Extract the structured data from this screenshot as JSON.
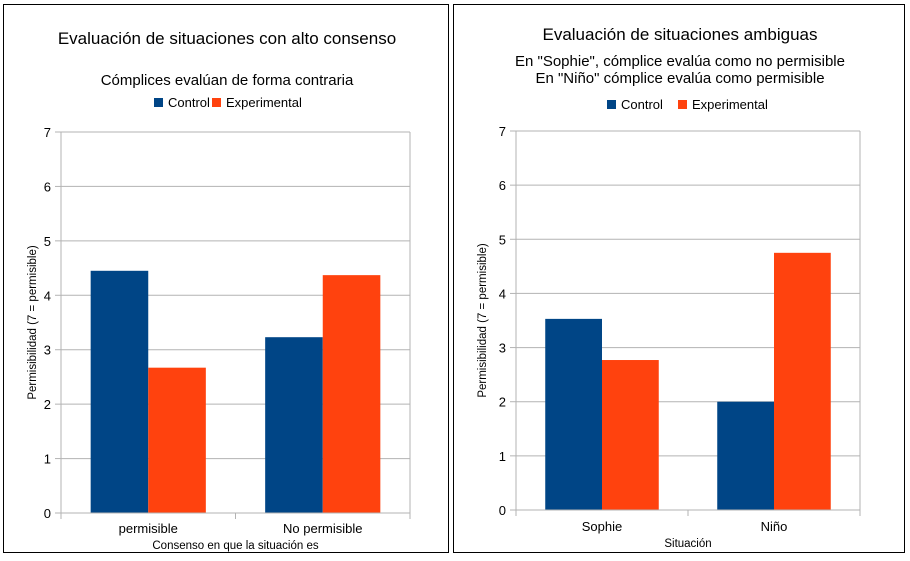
{
  "chart_data": [
    {
      "type": "bar",
      "title": "Evaluación de situaciones con alto consenso",
      "subtitle": [
        "Cómplices evalúan de forma contraria"
      ],
      "categories": [
        "permisible",
        "No permisible"
      ],
      "series": [
        {
          "name": "Control",
          "values": [
            4.45,
            3.23
          ],
          "color": "#004586"
        },
        {
          "name": "Experimental",
          "values": [
            2.67,
            4.37
          ],
          "color": "#ff420e"
        }
      ],
      "xlabel": "Consenso en que la situación es",
      "ylabel": "Permisibilidad (7 = permisible)",
      "ylim": [
        0,
        7
      ],
      "yticks": [
        "0",
        "1",
        "2",
        "3",
        "4",
        "5",
        "6",
        "7"
      ],
      "grid": true,
      "legend": "top"
    },
    {
      "type": "bar",
      "title": "Evaluación de situaciones ambiguas",
      "subtitle": [
        "En \"Sophie\", cómplice evalúa como no permisible",
        "En \"Niño\" cómplice evalúa como permisible"
      ],
      "categories": [
        "Sophie",
        "Niño"
      ],
      "series": [
        {
          "name": "Control",
          "values": [
            3.53,
            2.0
          ],
          "color": "#004586"
        },
        {
          "name": "Experimental",
          "values": [
            2.77,
            4.75
          ],
          "color": "#ff420e"
        }
      ],
      "xlabel": "Situación",
      "ylabel": "Permisibilidad (7 = permisible)",
      "ylim": [
        0,
        7
      ],
      "yticks": [
        "0",
        "1",
        "2",
        "3",
        "4",
        "5",
        "6",
        "7"
      ],
      "grid": true,
      "legend": "top"
    }
  ]
}
